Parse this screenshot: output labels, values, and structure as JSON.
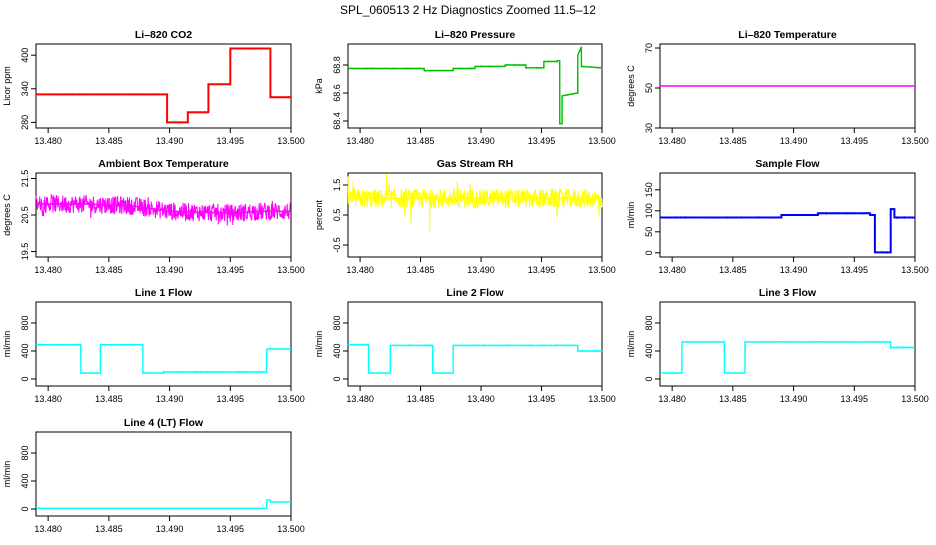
{
  "page_title": "SPL_060513  2 Hz Diagnostics Zoomed 11.5–12",
  "x_ticks": [
    "13.480",
    "13.485",
    "13.490",
    "13.495",
    "13.500"
  ],
  "colors": {
    "co2": "#ff0000",
    "pressure": "#00c000",
    "temperature": "#ff00ff",
    "box_temp": "#ff00ff",
    "rh": "#ffff00",
    "sample_flow": "#0000ff",
    "line_flow": "#00ffff"
  },
  "chart_data": [
    {
      "type": "line",
      "title": "Li–820 CO2",
      "ylabel": "Licor ppm",
      "xlim": [
        13.479,
        13.5
      ],
      "ylim": [
        270,
        420
      ],
      "yticks": [
        280,
        340,
        400
      ],
      "ytick_labels": [
        "280",
        "340",
        "400"
      ],
      "color": "#ff0000",
      "noise": 1,
      "series": {
        "x": [
          13.479,
          13.4898,
          13.4898,
          13.4915,
          13.4915,
          13.4932,
          13.4932,
          13.495,
          13.495,
          13.4983,
          13.4983,
          13.5
        ],
        "y": [
          330,
          330,
          280,
          280,
          298,
          298,
          348,
          348,
          412,
          412,
          325,
          325
        ]
      }
    },
    {
      "type": "line",
      "title": "Li–820 Pressure",
      "ylabel": "kPa",
      "xlim": [
        13.479,
        13.5
      ],
      "ylim": [
        68.35,
        68.95
      ],
      "yticks": [
        68.4,
        68.6,
        68.8
      ],
      "ytick_labels": [
        "68.4",
        "68.6",
        "68.8"
      ],
      "color": "#00c000",
      "noise": 0.004,
      "series": {
        "x": [
          13.479,
          13.4853,
          13.4853,
          13.4877,
          13.4877,
          13.4895,
          13.4895,
          13.492,
          13.492,
          13.4937,
          13.4937,
          13.4952,
          13.4952,
          13.4963,
          13.4963,
          13.4965,
          13.4965,
          13.4967,
          13.4967,
          13.498,
          13.498,
          13.4983,
          13.4983,
          13.5
        ],
        "y": [
          68.775,
          68.775,
          68.76,
          68.76,
          68.775,
          68.775,
          68.79,
          68.79,
          68.8,
          68.8,
          68.78,
          68.78,
          68.825,
          68.825,
          68.83,
          68.83,
          68.38,
          68.38,
          68.58,
          68.6,
          68.87,
          68.93,
          68.79,
          68.78
        ]
      }
    },
    {
      "type": "line",
      "title": "Li–820 Temperature",
      "ylabel": "degrees C",
      "xlim": [
        13.479,
        13.5
      ],
      "ylim": [
        30,
        72
      ],
      "yticks": [
        30,
        50,
        70
      ],
      "ytick_labels": [
        "30",
        "50",
        "70"
      ],
      "color": "#ff00ff",
      "noise": 0,
      "series": {
        "x": [
          13.479,
          13.5
        ],
        "y": [
          51,
          51
        ]
      }
    },
    {
      "type": "line",
      "title": "Ambient Box Temperature",
      "ylabel": "degrees C",
      "xlim": [
        13.479,
        13.5
      ],
      "ylim": [
        19.35,
        21.65
      ],
      "yticks": [
        19.5,
        20.5,
        21.5
      ],
      "ytick_labels": [
        "19.5",
        "20.5",
        "21.5"
      ],
      "color": "#ff00ff",
      "noise": 0.25,
      "spikes": 0.12,
      "series": {
        "x": [
          13.479,
          13.483,
          13.487,
          13.49,
          13.495,
          13.4975,
          13.5
        ],
        "y": [
          20.8,
          20.8,
          20.75,
          20.6,
          20.55,
          20.6,
          20.6
        ]
      }
    },
    {
      "type": "line",
      "title": "Gas Stream RH",
      "ylabel": "percent",
      "xlim": [
        13.479,
        13.5
      ],
      "ylim": [
        -0.9,
        1.9
      ],
      "yticks": [
        -0.5,
        0.5,
        1.5
      ],
      "ytick_labels": [
        "-0.5",
        "0.5",
        "1.5"
      ],
      "color": "#ffff00",
      "noise": 0.32,
      "spikes": 0.9,
      "series": {
        "x": [
          13.479,
          13.5
        ],
        "y": [
          1.05,
          1.05
        ]
      }
    },
    {
      "type": "line",
      "title": "Sample Flow",
      "ylabel": "ml/min",
      "xlim": [
        13.479,
        13.5
      ],
      "ylim": [
        -10,
        190
      ],
      "yticks": [
        0,
        50,
        100,
        150
      ],
      "ytick_labels": [
        "0",
        "50",
        "100",
        "150"
      ],
      "color": "#0000ff",
      "noise": 1.5,
      "series": {
        "x": [
          13.479,
          13.489,
          13.489,
          13.492,
          13.492,
          13.4963,
          13.4963,
          13.4967,
          13.4967,
          13.498,
          13.498,
          13.4983,
          13.4983,
          13.5
        ],
        "y": [
          84,
          84,
          90,
          90,
          94,
          94,
          90,
          90,
          1,
          1,
          104,
          104,
          84,
          84
        ]
      }
    },
    {
      "type": "line",
      "title": "Line 1 Flow",
      "ylabel": "ml/min",
      "xlim": [
        13.479,
        13.5
      ],
      "ylim": [
        -100,
        1100
      ],
      "yticks": [
        0,
        400,
        800
      ],
      "ytick_labels": [
        "0",
        "400",
        "800"
      ],
      "color": "#00ffff",
      "noise": 8,
      "series": {
        "x": [
          13.479,
          13.4827,
          13.4827,
          13.4843,
          13.4843,
          13.4878,
          13.4878,
          13.4895,
          13.4895,
          13.498,
          13.498,
          13.4983,
          13.4983,
          13.5
        ],
        "y": [
          490,
          490,
          85,
          85,
          490,
          490,
          85,
          85,
          100,
          100,
          420,
          440,
          430,
          430
        ]
      }
    },
    {
      "type": "line",
      "title": "Line 2 Flow",
      "ylabel": "ml/min",
      "xlim": [
        13.479,
        13.5
      ],
      "ylim": [
        -100,
        1100
      ],
      "yticks": [
        0,
        400,
        800
      ],
      "ytick_labels": [
        "0",
        "400",
        "800"
      ],
      "color": "#00ffff",
      "noise": 8,
      "series": {
        "x": [
          13.479,
          13.4807,
          13.4807,
          13.4825,
          13.4825,
          13.486,
          13.486,
          13.4877,
          13.4877,
          13.498,
          13.498,
          13.5
        ],
        "y": [
          490,
          490,
          85,
          85,
          480,
          480,
          85,
          85,
          480,
          480,
          400,
          400
        ]
      }
    },
    {
      "type": "line",
      "title": "Line 3 Flow",
      "ylabel": "ml/min",
      "xlim": [
        13.479,
        13.5
      ],
      "ylim": [
        -100,
        1100
      ],
      "yticks": [
        0,
        400,
        800
      ],
      "ytick_labels": [
        "0",
        "400",
        "800"
      ],
      "color": "#00ffff",
      "noise": 8,
      "series": {
        "x": [
          13.479,
          13.4808,
          13.4808,
          13.4843,
          13.4843,
          13.486,
          13.486,
          13.498,
          13.498,
          13.5
        ],
        "y": [
          85,
          85,
          530,
          530,
          85,
          85,
          530,
          530,
          450,
          450
        ]
      }
    },
    {
      "type": "line",
      "title": "Line 4 (LT) Flow",
      "ylabel": "ml/min",
      "xlim": [
        13.479,
        13.5
      ],
      "ylim": [
        -100,
        1100
      ],
      "yticks": [
        0,
        400,
        800
      ],
      "ytick_labels": [
        "0",
        "400",
        "800"
      ],
      "color": "#00ffff",
      "noise": 2,
      "series": {
        "x": [
          13.479,
          13.498,
          13.498,
          13.4983,
          13.4983,
          13.5
        ],
        "y": [
          10,
          10,
          130,
          130,
          100,
          100
        ]
      }
    }
  ]
}
